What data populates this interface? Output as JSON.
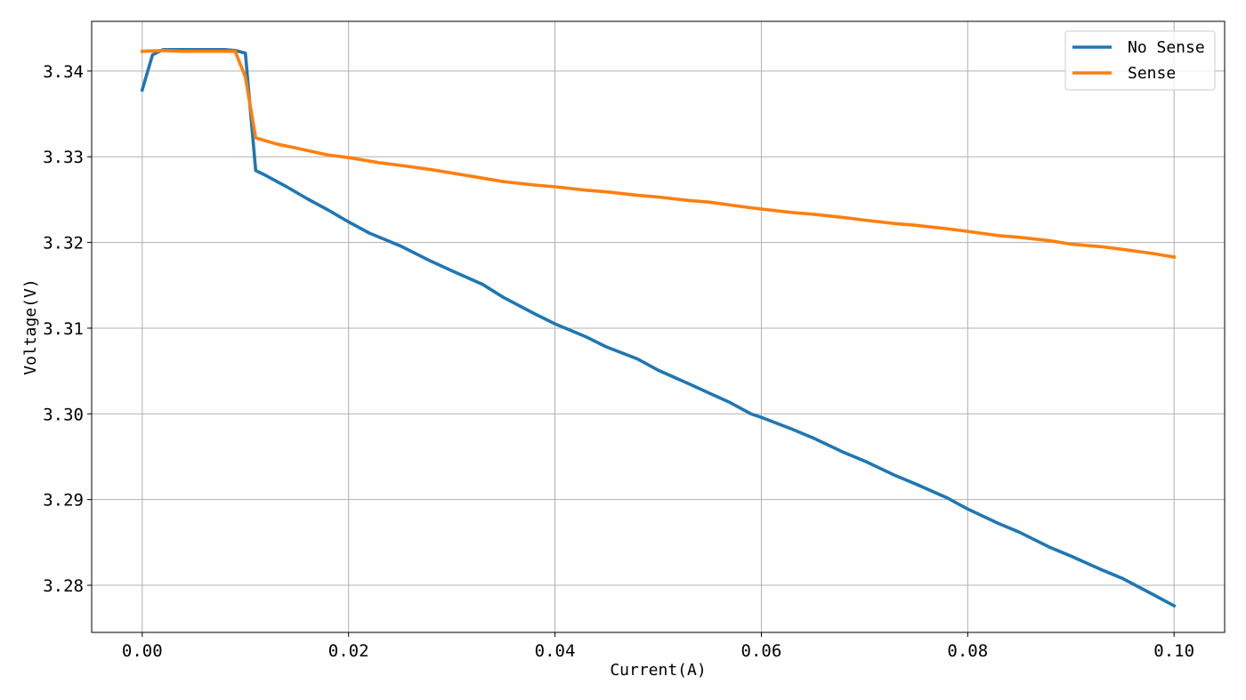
{
  "chart_data": {
    "type": "line",
    "title": "",
    "xlabel": "Current(A)",
    "ylabel": "Voltage(V)",
    "xlim": [
      -0.0049,
      0.1049
    ],
    "ylim": [
      3.2745,
      3.3458
    ],
    "x_ticks": [
      0.0,
      0.02,
      0.04,
      0.06,
      0.08,
      0.1
    ],
    "x_tick_labels": [
      "0.00",
      "0.02",
      "0.04",
      "0.06",
      "0.08",
      "0.10"
    ],
    "y_ticks": [
      3.28,
      3.29,
      3.3,
      3.31,
      3.32,
      3.33,
      3.34
    ],
    "y_tick_labels": [
      "3.28",
      "3.29",
      "3.30",
      "3.31",
      "3.32",
      "3.33",
      "3.34"
    ],
    "grid": true,
    "legend_position": "top-right",
    "series": [
      {
        "name": "No Sense",
        "color": "#1f77b4",
        "points": [
          [
            0.0,
            3.3378
          ],
          [
            0.001,
            3.3419
          ],
          [
            0.002,
            3.3425
          ],
          [
            0.004,
            3.3425
          ],
          [
            0.006,
            3.3425
          ],
          [
            0.008,
            3.3425
          ],
          [
            0.009,
            3.3424
          ],
          [
            0.01,
            3.3421
          ],
          [
            0.011,
            3.3284
          ],
          [
            0.012,
            3.3278
          ],
          [
            0.014,
            3.3265
          ],
          [
            0.016,
            3.3251
          ],
          [
            0.018,
            3.3238
          ],
          [
            0.02,
            3.3224
          ],
          [
            0.022,
            3.3211
          ],
          [
            0.025,
            3.3196
          ],
          [
            0.028,
            3.3178
          ],
          [
            0.03,
            3.3167
          ],
          [
            0.033,
            3.3151
          ],
          [
            0.035,
            3.3136
          ],
          [
            0.038,
            3.3117
          ],
          [
            0.04,
            3.3105
          ],
          [
            0.043,
            3.309
          ],
          [
            0.045,
            3.3078
          ],
          [
            0.048,
            3.3064
          ],
          [
            0.05,
            3.3051
          ],
          [
            0.053,
            3.3035
          ],
          [
            0.055,
            3.3024
          ],
          [
            0.057,
            3.3013
          ],
          [
            0.059,
            3.3
          ],
          [
            0.06,
            3.2996
          ],
          [
            0.063,
            3.2982
          ],
          [
            0.065,
            3.2972
          ],
          [
            0.068,
            3.2955
          ],
          [
            0.07,
            3.2945
          ],
          [
            0.073,
            3.2928
          ],
          [
            0.075,
            3.2918
          ],
          [
            0.078,
            3.2902
          ],
          [
            0.08,
            3.2889
          ],
          [
            0.083,
            3.2872
          ],
          [
            0.085,
            3.2862
          ],
          [
            0.088,
            3.2844
          ],
          [
            0.09,
            3.2834
          ],
          [
            0.093,
            3.2818
          ],
          [
            0.095,
            3.2808
          ],
          [
            0.098,
            3.2789
          ],
          [
            0.1,
            3.2776
          ]
        ]
      },
      {
        "name": "Sense",
        "color": "#ff7f0e",
        "points": [
          [
            0.0,
            3.3423
          ],
          [
            0.002,
            3.3424
          ],
          [
            0.004,
            3.3423
          ],
          [
            0.006,
            3.3423
          ],
          [
            0.008,
            3.3423
          ],
          [
            0.009,
            3.3423
          ],
          [
            0.01,
            3.3393
          ],
          [
            0.011,
            3.3322
          ],
          [
            0.013,
            3.3315
          ],
          [
            0.015,
            3.331
          ],
          [
            0.018,
            3.3302
          ],
          [
            0.02,
            3.3299
          ],
          [
            0.023,
            3.3293
          ],
          [
            0.025,
            3.329
          ],
          [
            0.028,
            3.3285
          ],
          [
            0.03,
            3.3281
          ],
          [
            0.033,
            3.3275
          ],
          [
            0.035,
            3.3271
          ],
          [
            0.038,
            3.3267
          ],
          [
            0.04,
            3.3265
          ],
          [
            0.043,
            3.3261
          ],
          [
            0.045,
            3.3259
          ],
          [
            0.048,
            3.3255
          ],
          [
            0.05,
            3.3253
          ],
          [
            0.053,
            3.3249
          ],
          [
            0.055,
            3.3247
          ],
          [
            0.058,
            3.3242
          ],
          [
            0.06,
            3.3239
          ],
          [
            0.063,
            3.3235
          ],
          [
            0.065,
            3.3233
          ],
          [
            0.068,
            3.3229
          ],
          [
            0.07,
            3.3226
          ],
          [
            0.073,
            3.3222
          ],
          [
            0.075,
            3.322
          ],
          [
            0.078,
            3.3216
          ],
          [
            0.08,
            3.3213
          ],
          [
            0.083,
            3.3208
          ],
          [
            0.085,
            3.3206
          ],
          [
            0.088,
            3.3202
          ],
          [
            0.09,
            3.3198
          ],
          [
            0.093,
            3.3195
          ],
          [
            0.095,
            3.3192
          ],
          [
            0.098,
            3.3187
          ],
          [
            0.1,
            3.3183
          ]
        ]
      }
    ]
  }
}
